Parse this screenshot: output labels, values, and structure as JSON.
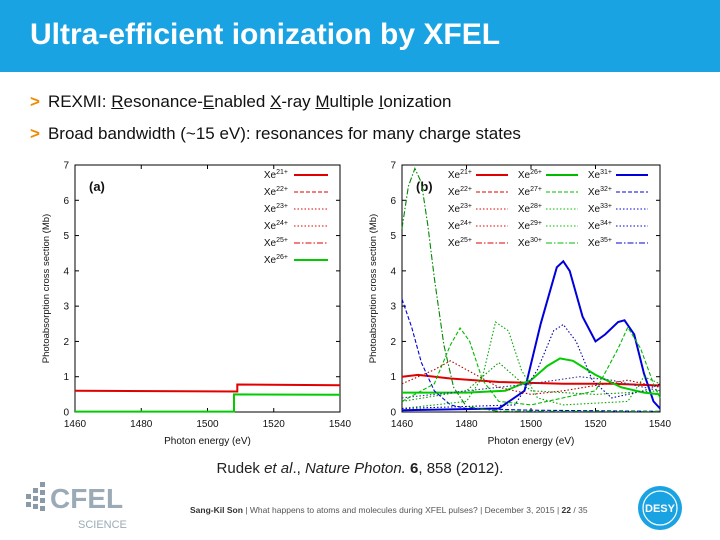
{
  "slide": {
    "title": "Ultra-efficient ionization by XFEL",
    "bullet1": {
      "prefix": "REXMI: ",
      "parts": [
        {
          "u": "R",
          "t": "esonance-"
        },
        {
          "u": "E",
          "t": "nabled "
        },
        {
          "u": "X",
          "t": "-ray "
        },
        {
          "u": "M",
          "t": "ultiple "
        },
        {
          "u": "I",
          "t": "onization"
        }
      ]
    },
    "bullet2": "Broad bandwidth (~15 eV): resonances for many charge states",
    "citation": {
      "authors": "Rudek ",
      "etal": "et al",
      "mid": "., ",
      "journal": "Nature Photon.",
      "vol": " 6",
      "rest": ", 858 (2012)."
    },
    "footer": {
      "author": "Sang-Kil Son",
      "sep1": " | ",
      "talk": "What happens to atoms and molecules during XFEL pulses?",
      "sep2": " | ",
      "date": "December 3, 2015",
      "sep3": " | ",
      "page": "22",
      "total": " / 35"
    },
    "logos": {
      "cfel": "CFEL",
      "cfel_sub": "SCIENCE",
      "desy": "DESY"
    }
  },
  "chart_data": [
    {
      "type": "line",
      "panel_label": "(a)",
      "xlabel": "Photon energy (eV)",
      "ylabel": "Photoabsorption cross section (Mb)",
      "xlim": [
        1460,
        1540
      ],
      "ylim": [
        0,
        7
      ],
      "xticks": [
        "1460",
        "1480",
        "1500",
        "1520",
        "1540"
      ],
      "yticks": [
        "0",
        "1",
        "2",
        "3",
        "4",
        "5",
        "6",
        "7"
      ],
      "legend": [
        "Xe21+",
        "Xe22+",
        "Xe23+",
        "Xe24+",
        "Xe25+",
        "Xe26+"
      ],
      "series": [
        {
          "name": "Xe21+",
          "color": "#e00000",
          "dash": "solid",
          "points": [
            [
              1460,
              0.6
            ],
            [
              1509,
              0.58
            ],
            [
              1509,
              0.78
            ],
            [
              1540,
              0.76
            ]
          ]
        },
        {
          "name": "Xe26+",
          "color": "#00cc00",
          "dash": "solid",
          "points": [
            [
              1460,
              0.01
            ],
            [
              1508,
              0.01
            ],
            [
              1508,
              0.5
            ],
            [
              1540,
              0.49
            ]
          ]
        }
      ]
    },
    {
      "type": "line",
      "panel_label": "(b)",
      "xlabel": "Photon energy (eV)",
      "ylabel": "Photoabsorption cross section (Mb)",
      "xlim": [
        1460,
        1540
      ],
      "ylim": [
        0,
        7
      ],
      "xticks": [
        "1460",
        "1480",
        "1500",
        "1520",
        "1540"
      ],
      "yticks": [
        "0",
        "1",
        "2",
        "3",
        "4",
        "5",
        "6",
        "7"
      ],
      "legend": [
        "Xe21+",
        "Xe22+",
        "Xe23+",
        "Xe24+",
        "Xe25+",
        "Xe26+",
        "Xe27+",
        "Xe28+",
        "Xe29+",
        "Xe30+",
        "Xe31+",
        "Xe32+",
        "Xe33+",
        "Xe34+",
        "Xe35+"
      ],
      "series": [
        {
          "name": "Xe21+",
          "color": "#e00000",
          "dash": "solid",
          "points": [
            [
              1460,
              1.0
            ],
            [
              1465,
              1.05
            ],
            [
              1475,
              0.95
            ],
            [
              1490,
              0.85
            ],
            [
              1510,
              0.8
            ],
            [
              1525,
              0.8
            ],
            [
              1540,
              0.75
            ]
          ]
        },
        {
          "name": "Xe31+",
          "color": "#0000dd",
          "dash": "solid",
          "points": [
            [
              1460,
              0.05
            ],
            [
              1490,
              0.1
            ],
            [
              1498,
              0.6
            ],
            [
              1503,
              2.5
            ],
            [
              1508,
              4.1
            ],
            [
              1510,
              4.27
            ],
            [
              1512,
              4.0
            ],
            [
              1516,
              2.7
            ],
            [
              1520,
              2.0
            ],
            [
              1523,
              2.2
            ],
            [
              1527,
              2.55
            ],
            [
              1529,
              2.6
            ],
            [
              1532,
              2.2
            ],
            [
              1535,
              1.1
            ],
            [
              1538,
              0.3
            ],
            [
              1540,
              0.1
            ]
          ]
        },
        {
          "name": "Xe26+",
          "color": "#00cc00",
          "dash": "solid",
          "points": [
            [
              1460,
              0.55
            ],
            [
              1480,
              0.55
            ],
            [
              1492,
              0.6
            ],
            [
              1500,
              0.9
            ],
            [
              1505,
              1.3
            ],
            [
              1509,
              1.52
            ],
            [
              1513,
              1.45
            ],
            [
              1520,
              1.05
            ],
            [
              1528,
              0.7
            ],
            [
              1535,
              0.55
            ],
            [
              1540,
              0.5
            ]
          ]
        },
        {
          "name": "Xe32+",
          "color": "#0000dd",
          "dash": "dashed",
          "points": [
            [
              1460,
              3.2
            ],
            [
              1463,
              2.4
            ],
            [
              1466,
              1.4
            ],
            [
              1470,
              0.6
            ],
            [
              1475,
              0.2
            ],
            [
              1480,
              0.1
            ],
            [
              1500,
              0.05
            ],
            [
              1540,
              0.02
            ]
          ]
        },
        {
          "name": "Xe35+",
          "color": "#008800",
          "dash": "dashdot",
          "points": [
            [
              1460,
              5.2
            ],
            [
              1462,
              6.4
            ],
            [
              1464,
              6.9
            ],
            [
              1466,
              6.5
            ],
            [
              1468,
              5.3
            ],
            [
              1470,
              3.8
            ],
            [
              1473,
              1.9
            ],
            [
              1476,
              0.7
            ],
            [
              1480,
              0.15
            ],
            [
              1490,
              0.02
            ],
            [
              1540,
              0.01
            ]
          ]
        },
        {
          "name": "Xe27+",
          "color": "#00bb00",
          "dash": "dashed",
          "points": [
            [
              1460,
              0.3
            ],
            [
              1470,
              0.8
            ],
            [
              1475,
              1.9
            ],
            [
              1478,
              2.38
            ],
            [
              1481,
              2.0
            ],
            [
              1485,
              0.9
            ],
            [
              1490,
              0.3
            ],
            [
              1500,
              0.2
            ],
            [
              1520,
              0.6
            ],
            [
              1527,
              1.8
            ],
            [
              1530,
              2.4
            ],
            [
              1534,
              1.8
            ],
            [
              1538,
              0.8
            ],
            [
              1540,
              0.4
            ]
          ]
        },
        {
          "name": "Xe28+",
          "color": "#00aa00",
          "dash": "dotted",
          "points": [
            [
              1460,
              0.1
            ],
            [
              1480,
              0.3
            ],
            [
              1485,
              1.0
            ],
            [
              1489,
              2.55
            ],
            [
              1493,
              2.3
            ],
            [
              1497,
              1.2
            ],
            [
              1502,
              0.4
            ],
            [
              1510,
              0.2
            ],
            [
              1530,
              0.3
            ],
            [
              1535,
              1.0
            ],
            [
              1540,
              0.8
            ]
          ]
        },
        {
          "name": "Xe33+",
          "color": "#0000aa",
          "dash": "dotted",
          "points": [
            [
              1460,
              0.1
            ],
            [
              1495,
              0.2
            ],
            [
              1502,
              1.2
            ],
            [
              1507,
              2.3
            ],
            [
              1510,
              2.48
            ],
            [
              1514,
              2.0
            ],
            [
              1519,
              0.9
            ],
            [
              1525,
              0.4
            ],
            [
              1535,
              0.6
            ],
            [
              1540,
              0.8
            ]
          ]
        },
        {
          "name": "Xe23+",
          "color": "#b00000",
          "dash": "dotted",
          "points": [
            [
              1460,
              0.8
            ],
            [
              1470,
              1.2
            ],
            [
              1475,
              1.45
            ],
            [
              1480,
              1.2
            ],
            [
              1490,
              0.7
            ],
            [
              1500,
              0.5
            ],
            [
              1510,
              0.6
            ],
            [
              1530,
              0.9
            ],
            [
              1540,
              0.7
            ]
          ]
        },
        {
          "name": "Xe29+",
          "color": "#009900",
          "dash": "dotted",
          "points": [
            [
              1460,
              0.3
            ],
            [
              1480,
              0.6
            ],
            [
              1485,
              1.0
            ],
            [
              1490,
              1.4
            ],
            [
              1495,
              1.0
            ],
            [
              1500,
              0.6
            ],
            [
              1520,
              0.5
            ],
            [
              1540,
              0.6
            ]
          ]
        },
        {
          "name": "Xe34+",
          "color": "#333399",
          "dash": "dotted",
          "points": [
            [
              1460,
              0.4
            ],
            [
              1480,
              0.6
            ],
            [
              1500,
              0.8
            ],
            [
              1515,
              1.0
            ],
            [
              1525,
              0.9
            ],
            [
              1540,
              0.6
            ]
          ]
        }
      ]
    }
  ]
}
